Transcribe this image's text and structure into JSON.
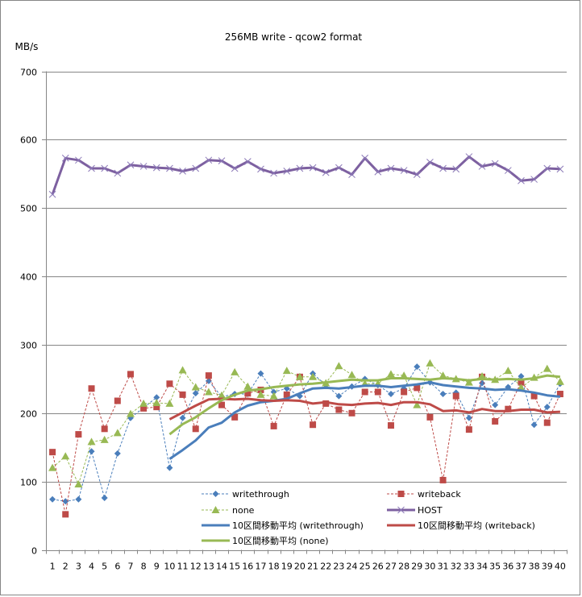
{
  "chart_data": {
    "type": "line",
    "title": "256MB write - qcow2 format",
    "xlabel": "",
    "ylabel": "MB/s",
    "ylim": [
      0,
      700
    ],
    "yticks": [
      0,
      100,
      200,
      300,
      400,
      500,
      600,
      700
    ],
    "grid": true,
    "legend_position": "bottom-center (inside plot)",
    "x": [
      1,
      2,
      3,
      4,
      5,
      6,
      7,
      8,
      9,
      10,
      11,
      12,
      13,
      14,
      15,
      16,
      17,
      18,
      19,
      20,
      21,
      22,
      23,
      24,
      25,
      26,
      27,
      28,
      29,
      30,
      31,
      32,
      33,
      34,
      35,
      36,
      37,
      38,
      39,
      40
    ],
    "series": [
      {
        "name": "writethrough",
        "style": "dashed-marker",
        "marker": "diamond",
        "color": "#4a7ebb",
        "values": [
          74,
          71,
          74,
          144,
          76,
          141,
          193,
          208,
          223,
          120,
          193,
          229,
          247,
          224,
          228,
          228,
          258,
          231,
          236,
          225,
          258,
          241,
          225,
          239,
          250,
          241,
          228,
          236,
          268,
          245,
          228,
          230,
          193,
          244,
          212,
          238,
          254,
          183,
          209,
          243
        ]
      },
      {
        "name": "writeback",
        "style": "dashed-marker",
        "marker": "square",
        "color": "#be4b48",
        "values": [
          143,
          52,
          169,
          236,
          177,
          218,
          257,
          207,
          209,
          243,
          227,
          177,
          255,
          212,
          194,
          229,
          234,
          181,
          227,
          253,
          183,
          214,
          205,
          200,
          231,
          231,
          182,
          231,
          237,
          194,
          102,
          225,
          176,
          253,
          188,
          206,
          245,
          225,
          186,
          228
        ]
      },
      {
        "name": "none",
        "style": "dashed-marker",
        "marker": "triangle",
        "color": "#98b954",
        "values": [
          120,
          137,
          96,
          158,
          161,
          171,
          199,
          214,
          215,
          214,
          263,
          238,
          231,
          226,
          260,
          239,
          227,
          225,
          262,
          253,
          253,
          244,
          269,
          256,
          243,
          243,
          257,
          255,
          212,
          273,
          255,
          250,
          245,
          254,
          249,
          262,
          237,
          252,
          265,
          246
        ]
      },
      {
        "name": "HOST",
        "style": "solid-marker",
        "marker": "x",
        "color": "#7d60a0",
        "values": [
          520,
          573,
          570,
          558,
          558,
          551,
          563,
          561,
          559,
          558,
          554,
          558,
          570,
          569,
          558,
          568,
          557,
          551,
          554,
          558,
          559,
          552,
          559,
          549,
          573,
          553,
          558,
          555,
          549,
          567,
          558,
          557,
          575,
          561,
          565,
          555,
          540,
          542,
          558,
          557
        ]
      },
      {
        "name": "10区間移動平均 (writethrough)",
        "style": "solid",
        "color": "#4a7ebb",
        "values": [
          null,
          null,
          null,
          null,
          null,
          null,
          null,
          null,
          null,
          133,
          146,
          160,
          179,
          186,
          201,
          211,
          216,
          218,
          221,
          229,
          236,
          237,
          236,
          238,
          240,
          240,
          238,
          240,
          242,
          245,
          241,
          239,
          237,
          236,
          234,
          235,
          233,
          230,
          226,
          224
        ]
      },
      {
        "name": "10区間移動平均 (writeback)",
        "style": "solid",
        "color": "#be4b48",
        "values": [
          null,
          null,
          null,
          null,
          null,
          null,
          null,
          null,
          null,
          191,
          201,
          211,
          220,
          221,
          220,
          221,
          219,
          218,
          219,
          218,
          214,
          216,
          213,
          212,
          214,
          215,
          212,
          216,
          216,
          213,
          203,
          204,
          201,
          206,
          203,
          203,
          205,
          205,
          201,
          202
        ]
      },
      {
        "name": "10区間移動平均 (none)",
        "style": "solid",
        "color": "#98b954",
        "values": [
          null,
          null,
          null,
          null,
          null,
          null,
          null,
          null,
          null,
          169,
          184,
          194,
          207,
          219,
          227,
          233,
          235,
          238,
          240,
          242,
          243,
          245,
          247,
          249,
          248,
          248,
          251,
          251,
          250,
          249,
          251,
          250,
          248,
          250,
          249,
          250,
          249,
          251,
          255,
          253
        ]
      }
    ],
    "legend": [
      {
        "label": "writethrough",
        "series": 0
      },
      {
        "label": "writeback",
        "series": 1
      },
      {
        "label": "none",
        "series": 2
      },
      {
        "label": "HOST",
        "series": 3
      },
      {
        "label": "10区間移動平均 (writethrough)",
        "series": 4
      },
      {
        "label": "10区間移動平均 (writeback)",
        "series": 5
      },
      {
        "label": "10区間移動平均 (none)",
        "series": 6
      }
    ]
  }
}
